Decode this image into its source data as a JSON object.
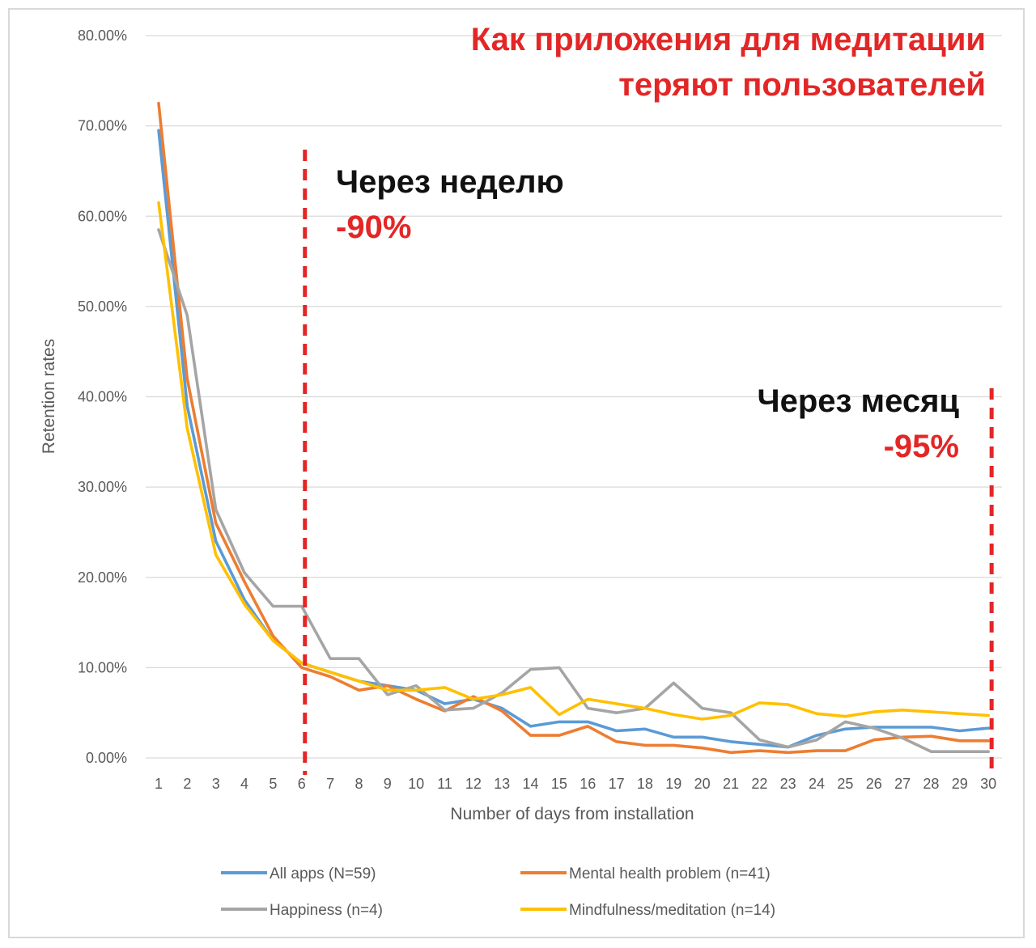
{
  "chart_data": {
    "type": "line",
    "title": "Как приложения для медитации теряют пользователей",
    "title_lines": [
      "Как приложения для медитации",
      "теряют пользователей"
    ],
    "xlabel": "Number of days from installation",
    "ylabel": "Retention rates",
    "ylim": [
      0,
      80
    ],
    "yticks": [
      "0.00%",
      "10.00%",
      "20.00%",
      "30.00%",
      "40.00%",
      "50.00%",
      "60.00%",
      "70.00%",
      "80.00%"
    ],
    "categories": [
      "1",
      "2",
      "3",
      "4",
      "5",
      "6",
      "7",
      "8",
      "9",
      "10",
      "11",
      "12",
      "13",
      "14",
      "15",
      "16",
      "17",
      "18",
      "19",
      "20",
      "21",
      "22",
      "23",
      "24",
      "25",
      "26",
      "27",
      "28",
      "29",
      "30"
    ],
    "grid": true,
    "legend_position": "bottom",
    "series": [
      {
        "name": "All apps (N=59)",
        "color": "#5b9bd5",
        "values": [
          69.5,
          39,
          24,
          17.5,
          13,
          10.5,
          9.5,
          8.5,
          8,
          7.5,
          6,
          6.5,
          5.5,
          3.5,
          4,
          4,
          3,
          3.2,
          2.3,
          2.3,
          1.8,
          1.5,
          1.2,
          2.5,
          3.2,
          3.4,
          3.4,
          3.4,
          3,
          3.3
        ]
      },
      {
        "name": "Mental health problem (n=41)",
        "color": "#ed7d31",
        "values": [
          72.5,
          42,
          26,
          19.5,
          13.5,
          10,
          9,
          7.5,
          8,
          6.5,
          5.2,
          6.8,
          5.2,
          2.5,
          2.5,
          3.5,
          1.8,
          1.4,
          1.4,
          1.1,
          0.6,
          0.8,
          0.6,
          0.8,
          0.8,
          2,
          2.3,
          2.4,
          1.9,
          1.9
        ]
      },
      {
        "name": "Happiness (n=4)",
        "color": "#a5a5a5",
        "values": [
          58.5,
          49,
          27.5,
          20.5,
          16.8,
          16.8,
          11,
          11,
          7,
          8,
          5.3,
          5.5,
          7.2,
          9.8,
          10,
          5.5,
          5,
          5.5,
          8.3,
          5.5,
          5,
          2,
          1.2,
          2,
          4,
          3.3,
          2.2,
          0.7,
          0.7,
          0.7
        ]
      },
      {
        "name": "Mindfulness/meditation (n=14)",
        "color": "#ffc000",
        "values": [
          61.5,
          36.5,
          22.5,
          17,
          13,
          10.5,
          9.5,
          8.5,
          7.5,
          7.5,
          7.8,
          6.5,
          7,
          7.8,
          4.8,
          6.5,
          6,
          5.5,
          4.8,
          4.3,
          4.7,
          6.1,
          5.9,
          4.9,
          4.6,
          5.1,
          5.3,
          5.1,
          4.9,
          4.7
        ]
      }
    ],
    "annotations": [
      {
        "at_day": "6",
        "line_color": "#e32626",
        "label": "Через неделю",
        "value": "-90%"
      },
      {
        "at_day": "30",
        "line_color": "#e32626",
        "label": "Через месяц",
        "value": "-95%"
      }
    ]
  }
}
